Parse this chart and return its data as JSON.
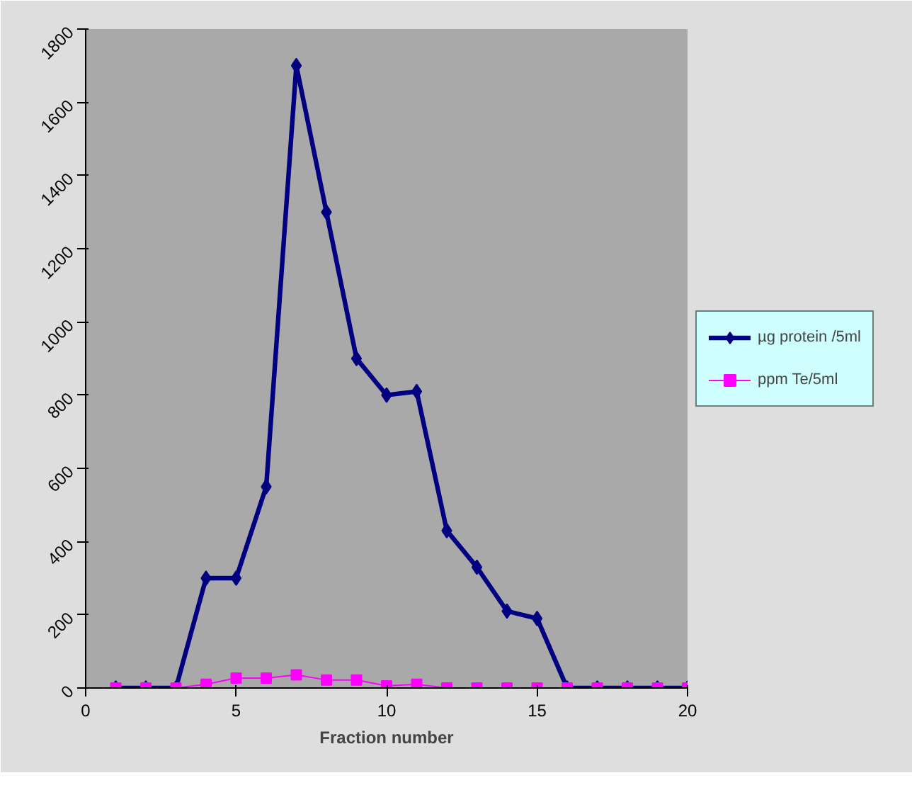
{
  "chart_data": {
    "type": "line",
    "xlabel": "Fraction number",
    "x": [
      1,
      2,
      3,
      4,
      5,
      6,
      7,
      8,
      9,
      10,
      11,
      12,
      13,
      14,
      15,
      16,
      17,
      18,
      19,
      20
    ],
    "series": [
      {
        "name": "µg protein /5ml",
        "color": "#000080",
        "marker": "diamond",
        "values": [
          0,
          0,
          0,
          300,
          300,
          550,
          1700,
          1300,
          900,
          800,
          810,
          430,
          330,
          210,
          190,
          0,
          0,
          0,
          0,
          0
        ]
      },
      {
        "name": "ppm Te/5ml",
        "color": "#ff00ff",
        "marker": "square",
        "values": [
          0,
          0,
          0,
          10,
          27,
          27,
          36,
          22,
          22,
          6,
          10,
          0,
          0,
          0,
          0,
          0,
          0,
          0,
          0,
          0
        ]
      }
    ],
    "xlim": [
      0,
      20
    ],
    "xticks": [
      0,
      5,
      10,
      15,
      20
    ],
    "ylim": [
      0,
      1800
    ],
    "yticks": [
      0,
      200,
      400,
      600,
      800,
      1000,
      1200,
      1400,
      1600,
      1800
    ],
    "grid": false,
    "legend": "right"
  }
}
